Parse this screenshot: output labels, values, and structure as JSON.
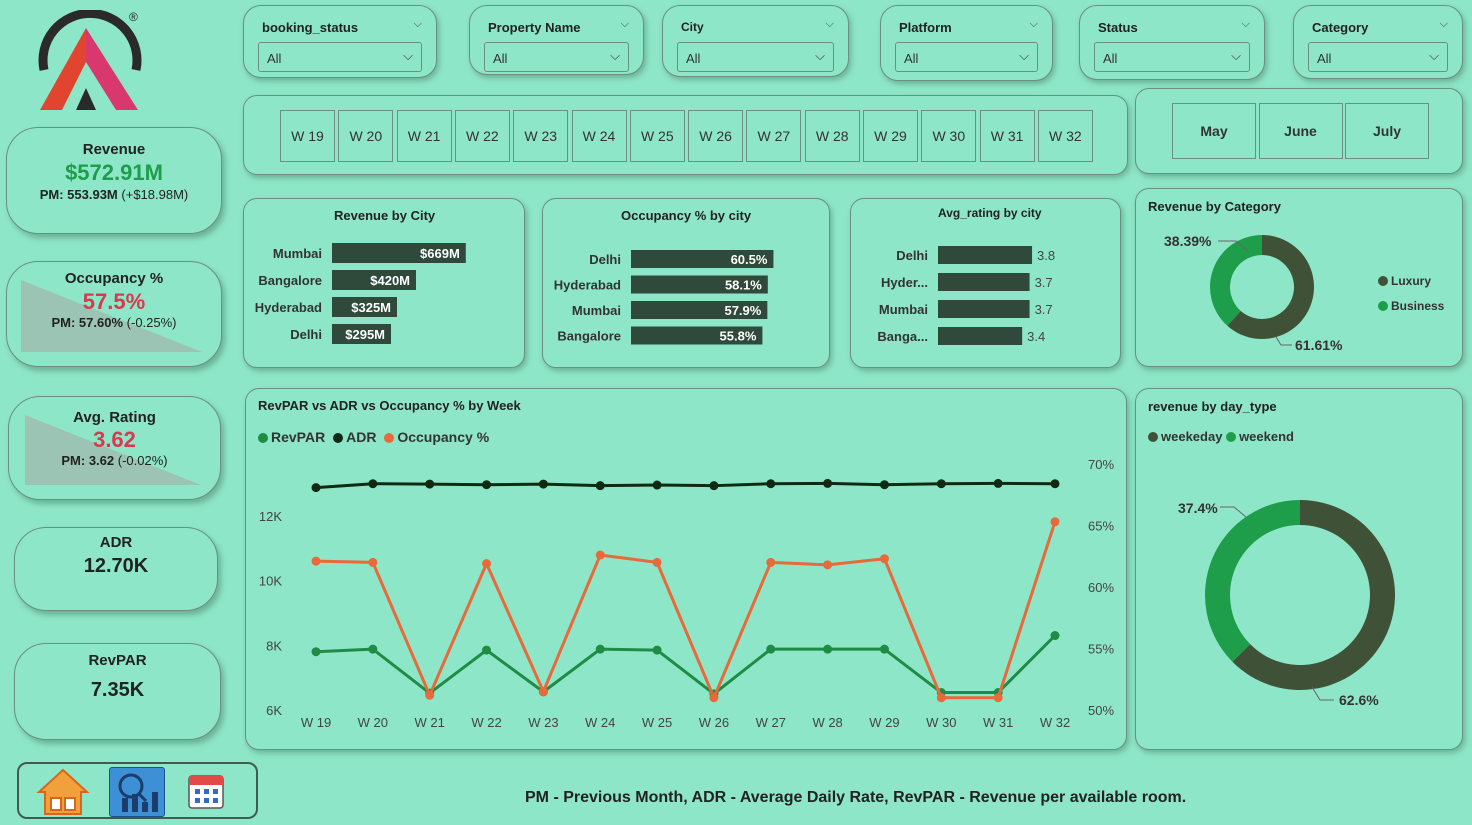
{
  "brand": {
    "trademark": "®"
  },
  "slicers": [
    {
      "title": "booking_status",
      "value": "All"
    },
    {
      "title": "Property Name",
      "value": "All"
    },
    {
      "title": "City",
      "value": "All"
    },
    {
      "title": "Platform",
      "value": "All"
    },
    {
      "title": "Status",
      "value": "All"
    },
    {
      "title": "Category",
      "value": "All"
    }
  ],
  "weeks": [
    "W 19",
    "W 20",
    "W 21",
    "W 22",
    "W 23",
    "W 24",
    "W 25",
    "W 26",
    "W 27",
    "W 28",
    "W 29",
    "W 30",
    "W 31",
    "W 32"
  ],
  "months": [
    "May",
    "June",
    "July"
  ],
  "kpis": {
    "revenue": {
      "title": "Revenue",
      "value": "$572.91M",
      "pm": "PM: 553.93M",
      "delta": "(+$18.98M)"
    },
    "occupancy": {
      "title": "Occupancy %",
      "value": "57.5%",
      "pm": "PM: 57.60%",
      "delta": "(-0.25%)"
    },
    "rating": {
      "title": "Avg. Rating",
      "value": "3.62",
      "pm": "PM: 3.62",
      "delta": "(-0.02%)"
    },
    "adr": {
      "title": "ADR",
      "value": "12.70K"
    },
    "revpar": {
      "title": "RevPAR",
      "value": "7.35K"
    }
  },
  "colors": {
    "background": "#8ee6c8",
    "bar": "#2f4a3a",
    "green_kpi": "#1e9e4a",
    "red_kpi": "#d9394f",
    "revpar": "#1e8c45",
    "adr": "#0e2a12",
    "occupancy": "#e8693a",
    "luxury": "#3f5237",
    "business": "#1e9e4a"
  },
  "revenue_by_city": {
    "title": "Revenue by City",
    "items": [
      {
        "label": "Mumbai",
        "value": 669,
        "text": "$669M"
      },
      {
        "label": "Bangalore",
        "value": 420,
        "text": "$420M"
      },
      {
        "label": "Hyderabad",
        "value": 325,
        "text": "$325M"
      },
      {
        "label": "Delhi",
        "value": 295,
        "text": "$295M"
      }
    ]
  },
  "occupancy_by_city": {
    "title": "Occupancy % by city",
    "items": [
      {
        "label": "Delhi",
        "value": 60.5,
        "text": "60.5%"
      },
      {
        "label": "Hyderabad",
        "value": 58.1,
        "text": "58.1%"
      },
      {
        "label": "Mumbai",
        "value": 57.9,
        "text": "57.9%"
      },
      {
        "label": "Bangalore",
        "value": 55.8,
        "text": "55.8%"
      }
    ]
  },
  "rating_by_city": {
    "title": "Avg_rating by city",
    "items": [
      {
        "label": "Delhi",
        "value": 3.8,
        "text": "3.8"
      },
      {
        "label": "Hyder...",
        "value": 3.7,
        "text": "3.7"
      },
      {
        "label": "Mumbai",
        "value": 3.7,
        "text": "3.7"
      },
      {
        "label": "Banga...",
        "value": 3.4,
        "text": "3.4"
      }
    ]
  },
  "revenue_by_category": {
    "title": "Revenue by Category",
    "legend": [
      "Luxury",
      "Business"
    ],
    "slices": [
      {
        "name": "Luxury",
        "value": 61.61,
        "text": "61.61%"
      },
      {
        "name": "Business",
        "value": 38.39,
        "text": "38.39%"
      }
    ]
  },
  "revenue_by_day_type": {
    "title": "revenue by day_type",
    "legend": [
      "weekeday",
      "weekend"
    ],
    "slices": [
      {
        "name": "weekeday",
        "value": 62.6,
        "text": "62.6%"
      },
      {
        "name": "weekend",
        "value": 37.4,
        "text": "37.4%"
      }
    ]
  },
  "chart_data": {
    "type": "line",
    "title": "RevPAR vs ADR vs Occupancy % by Week",
    "categories": [
      "W 19",
      "W 20",
      "W 21",
      "W 22",
      "W 23",
      "W 24",
      "W 25",
      "W 26",
      "W 27",
      "W 28",
      "W 29",
      "W 30",
      "W 31",
      "W 32"
    ],
    "y_left": {
      "ticks": [
        "6K",
        "8K",
        "10K",
        "12K"
      ],
      "range": [
        6000,
        13600
      ]
    },
    "y_right": {
      "ticks": [
        "50%",
        "55%",
        "60%",
        "65%",
        "70%"
      ],
      "range": [
        50,
        70
      ]
    },
    "series": [
      {
        "name": "RevPAR",
        "axis": "left",
        "values": [
          7800,
          7880,
          6520,
          7850,
          6560,
          7880,
          7850,
          6500,
          7880,
          7880,
          7880,
          6540,
          6540,
          8300
        ]
      },
      {
        "name": "ADR",
        "axis": "left",
        "values": [
          12870,
          12990,
          12980,
          12960,
          12980,
          12930,
          12950,
          12930,
          12990,
          13000,
          12960,
          12990,
          13000,
          12990
        ]
      },
      {
        "name": "Occupancy %",
        "axis": "right",
        "values": [
          62.1,
          62.0,
          51.2,
          61.9,
          51.5,
          62.6,
          62.0,
          51.0,
          62.0,
          61.8,
          62.3,
          51.0,
          51.0,
          65.3
        ]
      }
    ]
  },
  "nav": [
    "home-button",
    "dashboard-button",
    "calendar-button"
  ],
  "footer": "PM - Previous Month, ADR - Average Daily Rate, RevPAR - Revenue per available room."
}
